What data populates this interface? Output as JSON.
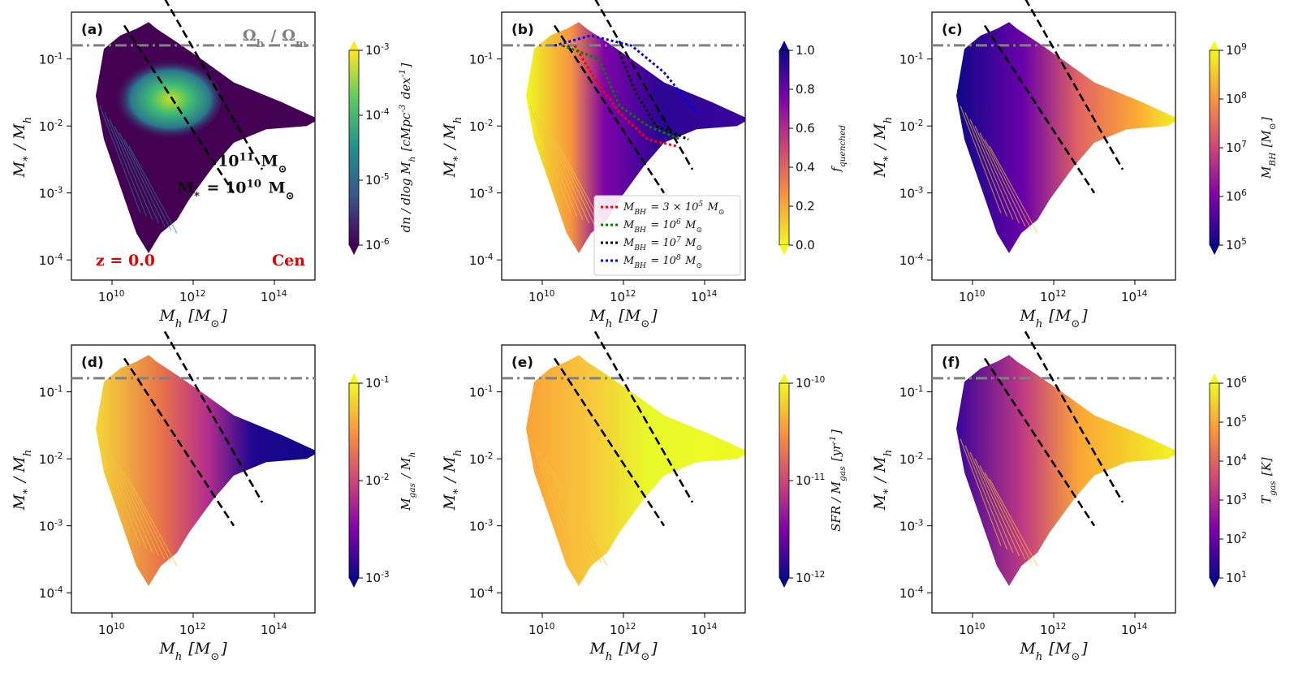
{
  "figure": {
    "x_axis_label": "M_h [M_⊙]",
    "y_axis_label": "M_* / M_h",
    "x_ticks": [
      "10^10",
      "10^12",
      "10^14"
    ],
    "y_ticks": [
      "10^-1",
      "10^-2",
      "10^-3",
      "10^-4"
    ],
    "baryon_fraction_label": "Ω_b / Ω_m",
    "baryon_fraction_value": 0.16
  },
  "chart_data": [
    {
      "type": "scatter",
      "panel": "(a)",
      "xscale": "log",
      "yscale": "log",
      "xlim": [
        1000000000.0,
        1000000000000000.0
      ],
      "ylim": [
        5e-05,
        0.5
      ],
      "colorbar_label": "dn / dlog M_h [cMpc^-3 dex^-1]",
      "colorbar_ticks": [
        "10^-3",
        "10^-4",
        "10^-5",
        "10^-6"
      ],
      "colormap": "viridis",
      "annotations": {
        "redshift": "z = 0.0",
        "simulation": "Cen",
        "line1": "10^11 M_⊙",
        "line2": "M_* = 10^10 M_⊙"
      }
    },
    {
      "type": "scatter",
      "panel": "(b)",
      "xscale": "log",
      "yscale": "log",
      "xlim": [
        1000000000.0,
        1000000000000000.0
      ],
      "ylim": [
        5e-05,
        0.5
      ],
      "colorbar_label": "f_quenched",
      "colorbar_ticks": [
        "1.0",
        "0.8",
        "0.6",
        "0.4",
        "0.2",
        "0.0"
      ],
      "colormap": "plasma_r",
      "legend": [
        {
          "label": "M_BH = 3 × 10^5 M_⊙",
          "color": "#ff0000"
        },
        {
          "label": "M_BH = 10^6 M_⊙",
          "color": "#008000"
        },
        {
          "label": "M_BH = 10^7 M_⊙",
          "color": "#000000"
        },
        {
          "label": "M_BH = 10^8 M_⊙",
          "color": "#0000ff"
        }
      ]
    },
    {
      "type": "scatter",
      "panel": "(c)",
      "xscale": "log",
      "yscale": "log",
      "xlim": [
        1000000000.0,
        1000000000000000.0
      ],
      "ylim": [
        5e-05,
        0.5
      ],
      "colorbar_label": "M_BH [M_⊙]",
      "colorbar_ticks": [
        "10^9",
        "10^8",
        "10^7",
        "10^6",
        "10^5"
      ],
      "colormap": "plasma"
    },
    {
      "type": "scatter",
      "panel": "(d)",
      "xscale": "log",
      "yscale": "log",
      "xlim": [
        1000000000.0,
        1000000000000000.0
      ],
      "ylim": [
        5e-05,
        0.5
      ],
      "colorbar_label": "M_gas / M_h",
      "colorbar_ticks": [
        "10^-1",
        "10^-2",
        "10^-3"
      ],
      "colormap": "plasma"
    },
    {
      "type": "scatter",
      "panel": "(e)",
      "xscale": "log",
      "yscale": "log",
      "xlim": [
        1000000000.0,
        1000000000000000.0
      ],
      "ylim": [
        5e-05,
        0.5
      ],
      "colorbar_label": "SFR / M_gas [yr^-1]",
      "colorbar_ticks": [
        "10^-10",
        "10^-11",
        "10^-12"
      ],
      "colormap": "plasma"
    },
    {
      "type": "scatter",
      "panel": "(f)",
      "xscale": "log",
      "yscale": "log",
      "xlim": [
        1000000000.0,
        1000000000000000.0
      ],
      "ylim": [
        5e-05,
        0.5
      ],
      "colorbar_label": "T_gas [K]",
      "colorbar_ticks": [
        "10^6",
        "10^5",
        "10^4",
        "10^3",
        "10^2",
        "10^1"
      ],
      "colormap": "plasma"
    }
  ]
}
